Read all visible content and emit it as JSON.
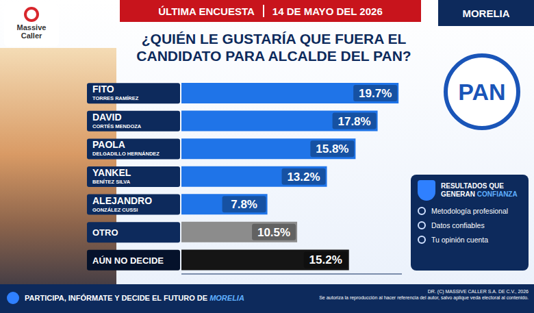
{
  "logo": "Massive Caller",
  "header": {
    "left": "ÚLTIMA ENCUESTA",
    "right": "14 DE MAYO DEL 2026",
    "place": "MORELIA"
  },
  "party_logo": "PAN",
  "chart_data": {
    "type": "bar",
    "orientation": "horizontal",
    "title": "¿QUIÉN LE GUSTARÍA QUE FUERA EL CANDIDATO PARA ALCALDE DEL PAN?",
    "categories": [
      "FITO",
      "DAVID",
      "PAOLA",
      "YANKEL",
      "ALEJANDRO",
      "OTRO",
      "AÚN NO DECIDE"
    ],
    "category_sublabels": [
      "TORRES RAMÍREZ",
      "CORTÉS MENDOZA",
      "DELGADILLO HERNÁNDEZ",
      "BENÍTEZ SILVA",
      "GONZÁLEZ CUSSI",
      null,
      null
    ],
    "values": [
      19.7,
      17.8,
      15.8,
      13.2,
      7.8,
      10.5,
      15.2
    ],
    "value_labels": [
      "19.7%",
      "17.8%",
      "15.8%",
      "13.2%",
      "7.8%",
      "10.5%",
      "15.2%"
    ],
    "colors": [
      "#1f74e8",
      "#1f74e8",
      "#1f74e8",
      "#1f74e8",
      "#1f74e8",
      "#8c8c8c",
      "#151515"
    ],
    "xlim": [
      0,
      20
    ],
    "tick_labels": false,
    "data_labels": true,
    "grid": false
  },
  "box": {
    "title": "RESULTADOS QUE GENERAN",
    "highlight": "CONFIANZA",
    "items": [
      "Metodología profesional",
      "Datos confiables",
      "Tu opinión cuenta"
    ]
  },
  "footer": {
    "text": "PARTICIPA, INFÓRMATE Y DECIDE EL FUTURO DE",
    "highlight": "MORELIA",
    "notes": [
      "DR. (C) MASSIVE CALLER S.A. DE C.V., 2026",
      "Se autoriza la reproducción al hacer referencia del autor, salvo aplique veda electoral al contenido."
    ]
  }
}
